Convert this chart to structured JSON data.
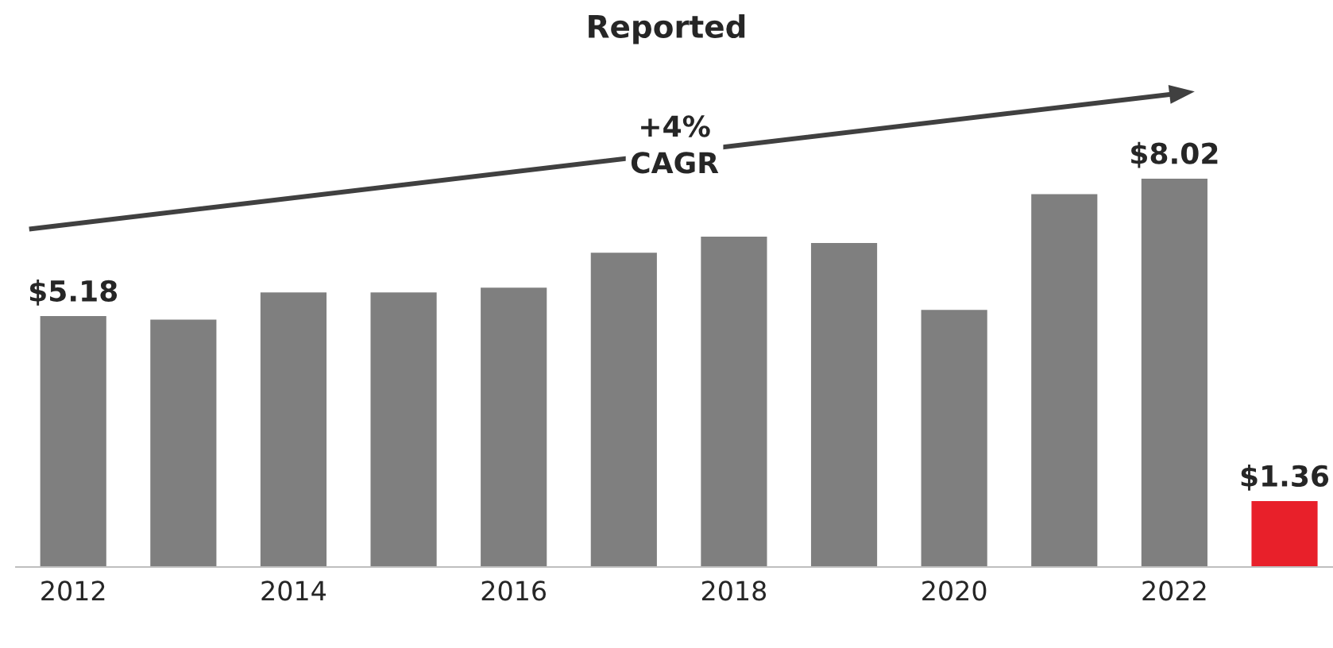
{
  "chart_data": {
    "type": "bar",
    "title": "Reported",
    "categories": [
      "2012",
      null,
      "2014",
      null,
      "2016",
      null,
      "2018",
      null,
      "2020",
      null,
      "2022",
      null
    ],
    "values": [
      5.18,
      5.11,
      5.67,
      5.67,
      5.77,
      6.49,
      6.82,
      6.69,
      5.31,
      7.7,
      8.02,
      1.36
    ],
    "colors": [
      "#7f7f7f",
      "#7f7f7f",
      "#7f7f7f",
      "#7f7f7f",
      "#7f7f7f",
      "#7f7f7f",
      "#7f7f7f",
      "#7f7f7f",
      "#7f7f7f",
      "#7f7f7f",
      "#7f7f7f",
      "#e8202a"
    ],
    "value_labels": [
      "$5.18",
      null,
      null,
      null,
      null,
      null,
      null,
      null,
      null,
      null,
      "$8.02",
      "$1.36"
    ],
    "annotations": [
      "+4%\nCAGR"
    ],
    "grid": false,
    "legend": false,
    "tick_labels": "x"
  }
}
